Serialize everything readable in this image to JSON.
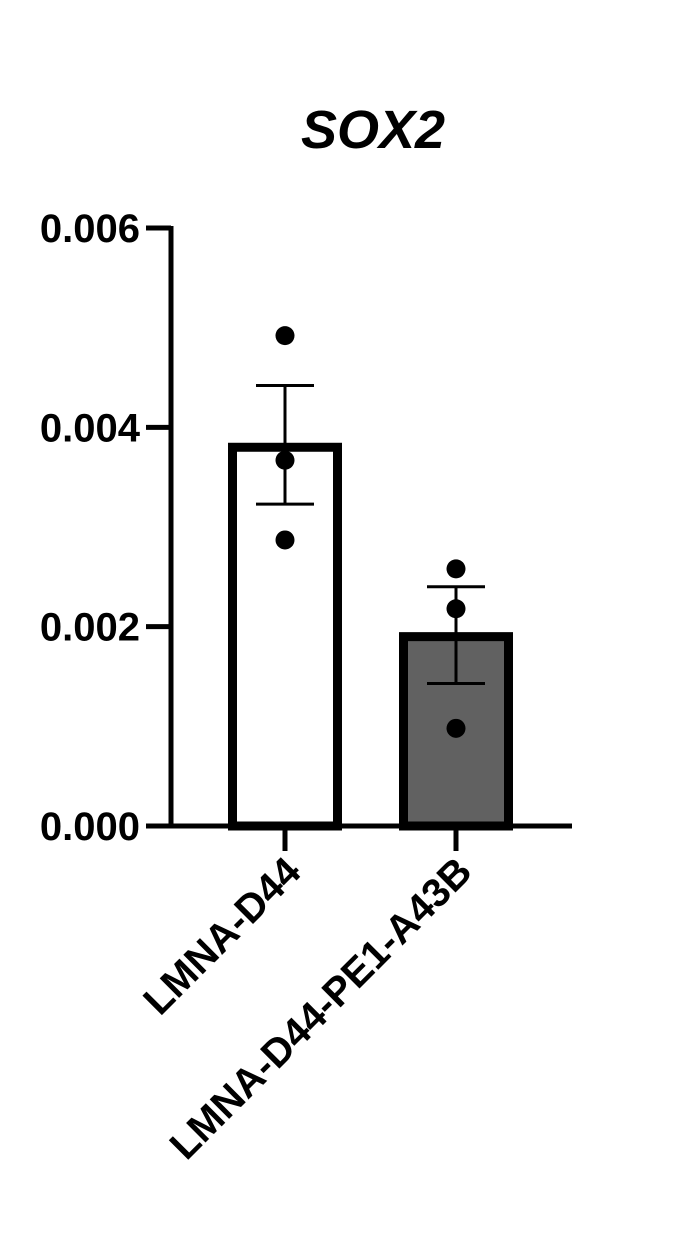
{
  "chart_data": {
    "type": "bar",
    "title": "SOX2",
    "xlabel": "",
    "ylabel": "",
    "ylim": [
      0,
      0.006
    ],
    "yticks": [
      {
        "value": 0.0,
        "label": "0.000"
      },
      {
        "value": 0.002,
        "label": "0.002"
      },
      {
        "value": 0.004,
        "label": "0.004"
      },
      {
        "value": 0.006,
        "label": "0.006"
      }
    ],
    "categories": [
      "LMNA-D44",
      "LMNA-D44-PE1-A43B"
    ],
    "values": [
      0.0038,
      0.0019
    ],
    "error_high": [
      0.00442,
      0.0024
    ],
    "error_low": [
      0.00323,
      0.00143
    ],
    "points": [
      [
        0.00492,
        0.00367,
        0.00287
      ],
      [
        0.00258,
        0.00218,
        0.00098
      ]
    ],
    "bar_colors": [
      "#ffffff",
      "#616161"
    ],
    "edge_color": "#000000",
    "grid": false,
    "legend": "none"
  }
}
